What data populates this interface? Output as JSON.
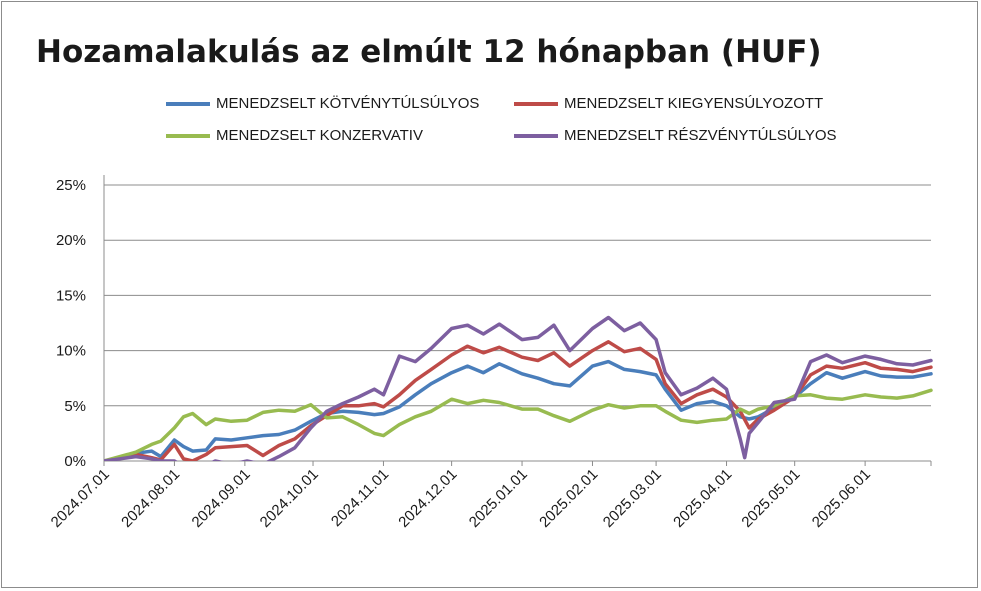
{
  "chart_data": {
    "type": "line",
    "title": "Hozamalakulás az elmúlt 12 hónapban (HUF)",
    "y_ticks": [
      "0%",
      "5%",
      "10%",
      "15%",
      "20%",
      "25%"
    ],
    "y_tick_values": [
      0,
      5,
      10,
      15,
      20,
      25
    ],
    "ylim": [
      0,
      25
    ],
    "x_tick_labels": [
      "2024.07.01",
      "2024.08.01",
      "2024.09.01",
      "2024.10.01",
      "2024.11.01",
      "2024.12.01",
      "2025.01.01",
      "2025.02.01",
      "2025.03.01",
      "2025.04.01",
      "2025.05.01",
      "2025.06.01"
    ],
    "x_tick_dates": [
      "2024-07-01",
      "2024-08-01",
      "2024-09-01",
      "2024-10-01",
      "2024-11-01",
      "2024-12-01",
      "2025-01-01",
      "2025-02-01",
      "2025-03-01",
      "2025-04-01",
      "2025-05-01",
      "2025-06-01"
    ],
    "x_end": "2025-06-30",
    "grid": "horizontal",
    "legend_position": "top",
    "series": [
      {
        "name": "MENEDZSELT KÖTVÉNYTÚLSÚLYOS",
        "color": "#4a7ebb",
        "points": [
          [
            "2024-07-01",
            0.0
          ],
          [
            "2024-07-08",
            0.3
          ],
          [
            "2024-07-15",
            0.7
          ],
          [
            "2024-07-22",
            0.9
          ],
          [
            "2024-07-26",
            0.4
          ],
          [
            "2024-08-01",
            1.9
          ],
          [
            "2024-08-05",
            1.3
          ],
          [
            "2024-08-09",
            0.9
          ],
          [
            "2024-08-15",
            1.0
          ],
          [
            "2024-08-19",
            2.0
          ],
          [
            "2024-08-26",
            1.9
          ],
          [
            "2024-09-02",
            2.1
          ],
          [
            "2024-09-09",
            2.3
          ],
          [
            "2024-09-16",
            2.4
          ],
          [
            "2024-09-23",
            2.8
          ],
          [
            "2024-09-30",
            3.6
          ],
          [
            "2024-10-07",
            4.3
          ],
          [
            "2024-10-14",
            4.5
          ],
          [
            "2024-10-21",
            4.4
          ],
          [
            "2024-10-28",
            4.2
          ],
          [
            "2024-11-01",
            4.3
          ],
          [
            "2024-11-08",
            4.9
          ],
          [
            "2024-11-15",
            6.0
          ],
          [
            "2024-11-22",
            7.0
          ],
          [
            "2024-12-01",
            8.0
          ],
          [
            "2024-12-08",
            8.6
          ],
          [
            "2024-12-15",
            8.0
          ],
          [
            "2024-12-22",
            8.8
          ],
          [
            "2025-01-01",
            7.9
          ],
          [
            "2025-01-08",
            7.5
          ],
          [
            "2025-01-15",
            7.0
          ],
          [
            "2025-01-22",
            6.8
          ],
          [
            "2025-02-01",
            8.6
          ],
          [
            "2025-02-08",
            9.0
          ],
          [
            "2025-02-15",
            8.3
          ],
          [
            "2025-02-22",
            8.1
          ],
          [
            "2025-03-01",
            7.8
          ],
          [
            "2025-03-05",
            6.5
          ],
          [
            "2025-03-12",
            4.6
          ],
          [
            "2025-03-19",
            5.2
          ],
          [
            "2025-03-26",
            5.4
          ],
          [
            "2025-04-01",
            5.0
          ],
          [
            "2025-04-07",
            4.0
          ],
          [
            "2025-04-11",
            3.8
          ],
          [
            "2025-04-15",
            4.0
          ],
          [
            "2025-04-22",
            4.8
          ],
          [
            "2025-05-01",
            5.8
          ],
          [
            "2025-05-08",
            7.0
          ],
          [
            "2025-05-15",
            8.0
          ],
          [
            "2025-05-22",
            7.5
          ],
          [
            "2025-06-01",
            8.1
          ],
          [
            "2025-06-08",
            7.7
          ],
          [
            "2025-06-15",
            7.6
          ],
          [
            "2025-06-22",
            7.6
          ],
          [
            "2025-06-30",
            7.9
          ]
        ]
      },
      {
        "name": "MENEDZSELT KIEGYENSÚLYOZOTT",
        "color": "#be4b48",
        "points": [
          [
            "2024-07-01",
            0.0
          ],
          [
            "2024-07-08",
            0.3
          ],
          [
            "2024-07-15",
            0.6
          ],
          [
            "2024-07-22",
            0.3
          ],
          [
            "2024-07-26",
            0.1
          ],
          [
            "2024-08-01",
            1.5
          ],
          [
            "2024-08-05",
            0.2
          ],
          [
            "2024-08-09",
            0.0
          ],
          [
            "2024-08-15",
            0.6
          ],
          [
            "2024-08-19",
            1.2
          ],
          [
            "2024-08-26",
            1.3
          ],
          [
            "2024-09-02",
            1.4
          ],
          [
            "2024-09-09",
            0.5
          ],
          [
            "2024-09-16",
            1.4
          ],
          [
            "2024-09-23",
            2.0
          ],
          [
            "2024-09-30",
            3.2
          ],
          [
            "2024-10-07",
            4.1
          ],
          [
            "2024-10-14",
            5.0
          ],
          [
            "2024-10-21",
            5.0
          ],
          [
            "2024-10-28",
            5.2
          ],
          [
            "2024-11-01",
            4.9
          ],
          [
            "2024-11-08",
            6.0
          ],
          [
            "2024-11-15",
            7.3
          ],
          [
            "2024-11-22",
            8.3
          ],
          [
            "2024-12-01",
            9.6
          ],
          [
            "2024-12-08",
            10.4
          ],
          [
            "2024-12-15",
            9.8
          ],
          [
            "2024-12-22",
            10.3
          ],
          [
            "2025-01-01",
            9.4
          ],
          [
            "2025-01-08",
            9.1
          ],
          [
            "2025-01-15",
            9.8
          ],
          [
            "2025-01-22",
            8.6
          ],
          [
            "2025-02-01",
            10.0
          ],
          [
            "2025-02-08",
            10.8
          ],
          [
            "2025-02-15",
            9.9
          ],
          [
            "2025-02-22",
            10.2
          ],
          [
            "2025-03-01",
            9.2
          ],
          [
            "2025-03-05",
            7.0
          ],
          [
            "2025-03-12",
            5.2
          ],
          [
            "2025-03-19",
            6.0
          ],
          [
            "2025-03-26",
            6.5
          ],
          [
            "2025-04-01",
            5.8
          ],
          [
            "2025-04-07",
            4.5
          ],
          [
            "2025-04-11",
            3.0
          ],
          [
            "2025-04-15",
            3.8
          ],
          [
            "2025-04-22",
            4.6
          ],
          [
            "2025-05-01",
            5.8
          ],
          [
            "2025-05-08",
            7.8
          ],
          [
            "2025-05-15",
            8.6
          ],
          [
            "2025-05-22",
            8.4
          ],
          [
            "2025-06-01",
            8.9
          ],
          [
            "2025-06-08",
            8.4
          ],
          [
            "2025-06-15",
            8.3
          ],
          [
            "2025-06-22",
            8.1
          ],
          [
            "2025-06-30",
            8.5
          ]
        ]
      },
      {
        "name": "MENEDZSELT KONZERVATIV",
        "color": "#98bb50",
        "points": [
          [
            "2024-07-01",
            0.0
          ],
          [
            "2024-07-08",
            0.4
          ],
          [
            "2024-07-15",
            0.8
          ],
          [
            "2024-07-22",
            1.5
          ],
          [
            "2024-07-26",
            1.8
          ],
          [
            "2024-08-01",
            3.0
          ],
          [
            "2024-08-05",
            4.0
          ],
          [
            "2024-08-09",
            4.3
          ],
          [
            "2024-08-15",
            3.3
          ],
          [
            "2024-08-19",
            3.8
          ],
          [
            "2024-08-26",
            3.6
          ],
          [
            "2024-09-02",
            3.7
          ],
          [
            "2024-09-09",
            4.4
          ],
          [
            "2024-09-16",
            4.6
          ],
          [
            "2024-09-23",
            4.5
          ],
          [
            "2024-09-30",
            5.1
          ],
          [
            "2024-10-07",
            3.9
          ],
          [
            "2024-10-14",
            4.0
          ],
          [
            "2024-10-21",
            3.3
          ],
          [
            "2024-10-28",
            2.5
          ],
          [
            "2024-11-01",
            2.3
          ],
          [
            "2024-11-08",
            3.3
          ],
          [
            "2024-11-15",
            4.0
          ],
          [
            "2024-11-22",
            4.5
          ],
          [
            "2024-12-01",
            5.6
          ],
          [
            "2024-12-08",
            5.2
          ],
          [
            "2024-12-15",
            5.5
          ],
          [
            "2024-12-22",
            5.3
          ],
          [
            "2025-01-01",
            4.7
          ],
          [
            "2025-01-08",
            4.7
          ],
          [
            "2025-01-15",
            4.1
          ],
          [
            "2025-01-22",
            3.6
          ],
          [
            "2025-02-01",
            4.6
          ],
          [
            "2025-02-08",
            5.1
          ],
          [
            "2025-02-15",
            4.8
          ],
          [
            "2025-02-22",
            5.0
          ],
          [
            "2025-03-01",
            5.0
          ],
          [
            "2025-03-05",
            4.5
          ],
          [
            "2025-03-12",
            3.7
          ],
          [
            "2025-03-19",
            3.5
          ],
          [
            "2025-03-26",
            3.7
          ],
          [
            "2025-04-01",
            3.8
          ],
          [
            "2025-04-07",
            4.7
          ],
          [
            "2025-04-11",
            4.3
          ],
          [
            "2025-04-15",
            4.7
          ],
          [
            "2025-04-22",
            5.0
          ],
          [
            "2025-05-01",
            5.9
          ],
          [
            "2025-05-08",
            6.0
          ],
          [
            "2025-05-15",
            5.7
          ],
          [
            "2025-05-22",
            5.6
          ],
          [
            "2025-06-01",
            6.0
          ],
          [
            "2025-06-08",
            5.8
          ],
          [
            "2025-06-15",
            5.7
          ],
          [
            "2025-06-22",
            5.9
          ],
          [
            "2025-06-30",
            6.4
          ]
        ]
      },
      {
        "name": "MENEDZSELT RÉSZVÉNYTÚLSÚLYOS",
        "color": "#7d5fa0",
        "points": [
          [
            "2024-07-01",
            0.0
          ],
          [
            "2024-07-08",
            0.2
          ],
          [
            "2024-07-15",
            0.4
          ],
          [
            "2024-07-22",
            0.2
          ],
          [
            "2024-07-26",
            0.0
          ],
          [
            "2024-08-01",
            0.0
          ],
          [
            "2024-08-05",
            -0.5
          ],
          [
            "2024-08-09",
            -1.0
          ],
          [
            "2024-08-15",
            -0.4
          ],
          [
            "2024-08-19",
            0.0
          ],
          [
            "2024-08-26",
            -0.3
          ],
          [
            "2024-09-02",
            0.0
          ],
          [
            "2024-09-09",
            -0.3
          ],
          [
            "2024-09-16",
            0.4
          ],
          [
            "2024-09-23",
            1.2
          ],
          [
            "2024-09-30",
            3.0
          ],
          [
            "2024-10-07",
            4.5
          ],
          [
            "2024-10-14",
            5.2
          ],
          [
            "2024-10-21",
            5.8
          ],
          [
            "2024-10-28",
            6.5
          ],
          [
            "2024-11-01",
            6.0
          ],
          [
            "2024-11-08",
            9.5
          ],
          [
            "2024-11-15",
            9.0
          ],
          [
            "2024-11-22",
            10.2
          ],
          [
            "2024-12-01",
            12.0
          ],
          [
            "2024-12-08",
            12.3
          ],
          [
            "2024-12-15",
            11.5
          ],
          [
            "2024-12-22",
            12.4
          ],
          [
            "2025-01-01",
            11.0
          ],
          [
            "2025-01-08",
            11.2
          ],
          [
            "2025-01-15",
            12.3
          ],
          [
            "2025-01-22",
            10.0
          ],
          [
            "2025-02-01",
            12.0
          ],
          [
            "2025-02-08",
            13.0
          ],
          [
            "2025-02-15",
            11.8
          ],
          [
            "2025-02-22",
            12.5
          ],
          [
            "2025-03-01",
            11.0
          ],
          [
            "2025-03-05",
            8.0
          ],
          [
            "2025-03-12",
            6.0
          ],
          [
            "2025-03-19",
            6.6
          ],
          [
            "2025-03-26",
            7.5
          ],
          [
            "2025-04-01",
            6.5
          ],
          [
            "2025-04-07",
            2.0
          ],
          [
            "2025-04-09",
            0.3
          ],
          [
            "2025-04-11",
            2.5
          ],
          [
            "2025-04-15",
            3.5
          ],
          [
            "2025-04-22",
            5.3
          ],
          [
            "2025-05-01",
            5.6
          ],
          [
            "2025-05-08",
            9.0
          ],
          [
            "2025-05-15",
            9.6
          ],
          [
            "2025-05-22",
            8.9
          ],
          [
            "2025-06-01",
            9.5
          ],
          [
            "2025-06-08",
            9.2
          ],
          [
            "2025-06-15",
            8.8
          ],
          [
            "2025-06-22",
            8.7
          ],
          [
            "2025-06-30",
            9.1
          ]
        ]
      }
    ]
  }
}
